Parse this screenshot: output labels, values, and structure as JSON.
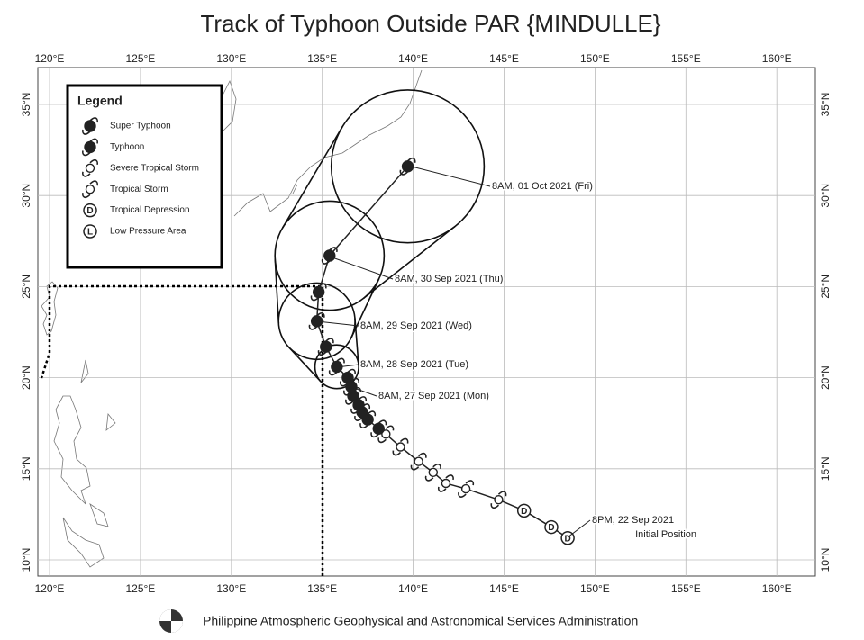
{
  "title": "Track of Typhoon Outside PAR {MINDULLE}",
  "lon_ticks": [
    {
      "value": 120,
      "label": "120°E"
    },
    {
      "value": 125,
      "label": "125°E"
    },
    {
      "value": 130,
      "label": "130°E"
    },
    {
      "value": 135,
      "label": "135°E"
    },
    {
      "value": 140,
      "label": "140°E"
    },
    {
      "value": 145,
      "label": "145°E"
    },
    {
      "value": 150,
      "label": "150°E"
    },
    {
      "value": 155,
      "label": "155°E"
    },
    {
      "value": 160,
      "label": "160°E"
    }
  ],
  "lat_ticks": [
    {
      "value": 10,
      "label": "10°N"
    },
    {
      "value": 15,
      "label": "15°N"
    },
    {
      "value": 20,
      "label": "20°N"
    },
    {
      "value": 25,
      "label": "25°N"
    },
    {
      "value": 30,
      "label": "30°N"
    },
    {
      "value": 35,
      "label": "35°N"
    }
  ],
  "legend": {
    "title": "Legend",
    "items": [
      {
        "label": "Super Typhoon"
      },
      {
        "label": "Typhoon"
      },
      {
        "label": "Severe Tropical Storm"
      },
      {
        "label": "Tropical Storm"
      },
      {
        "symbol": "D",
        "label": "Tropical Depression"
      },
      {
        "symbol": "L",
        "label": "Low Pressure Area"
      }
    ]
  },
  "track": [
    {
      "lon": 148.5,
      "lat": 11.2,
      "stage": 4
    },
    {
      "lon": 147.6,
      "lat": 11.8,
      "stage": 4
    },
    {
      "lon": 146.1,
      "lat": 12.7,
      "stage": 4
    },
    {
      "lon": 144.7,
      "lat": 13.3,
      "stage": 3
    },
    {
      "lon": 142.9,
      "lat": 13.9,
      "stage": 3
    },
    {
      "lon": 141.8,
      "lat": 14.2,
      "stage": 3
    },
    {
      "lon": 141.1,
      "lat": 14.8,
      "stage": 2
    },
    {
      "lon": 140.3,
      "lat": 15.4,
      "stage": 2
    },
    {
      "lon": 139.3,
      "lat": 16.2,
      "stage": 2
    },
    {
      "lon": 138.5,
      "lat": 16.9,
      "stage": 2
    },
    {
      "lon": 138.1,
      "lat": 17.2,
      "stage": 1
    },
    {
      "lon": 137.5,
      "lat": 17.7,
      "stage": 1
    },
    {
      "lon": 137.2,
      "lat": 18.1,
      "stage": 1
    },
    {
      "lon": 137.0,
      "lat": 18.5,
      "stage": 1
    },
    {
      "lon": 136.7,
      "lat": 19.0,
      "stage": 1
    },
    {
      "lon": 136.6,
      "lat": 19.5,
      "stage": 1
    },
    {
      "lon": 136.4,
      "lat": 20.0,
      "stage": 1
    },
    {
      "lon": 135.8,
      "lat": 20.6,
      "stage": 1
    },
    {
      "lon": 135.2,
      "lat": 21.7,
      "stage": 1
    },
    {
      "lon": 134.7,
      "lat": 23.1,
      "stage": 1
    },
    {
      "lon": 134.8,
      "lat": 24.7,
      "stage": 1
    },
    {
      "lon": 135.4,
      "lat": 26.7,
      "stage": 1
    },
    {
      "lon": 139.7,
      "lat": 31.6,
      "stage": 1
    }
  ],
  "forecast_circles": [
    {
      "lon": 135.8,
      "lat": 20.6,
      "radius": 1.2
    },
    {
      "lon": 134.7,
      "lat": 23.1,
      "radius": 2.1
    },
    {
      "lon": 135.4,
      "lat": 26.7,
      "radius": 3.0
    },
    {
      "lon": 139.7,
      "lat": 31.6,
      "radius": 4.2
    }
  ],
  "annotations": [
    "8AM, 01 Oct 2021 (Fri)",
    "8AM, 30 Sep 2021 (Thu)",
    "8AM, 29 Sep 2021 (Wed)",
    "8AM, 28 Sep 2021 (Tue)",
    "8AM, 27 Sep 2021 (Mon)",
    "8PM, 22 Sep 2021",
    "Initial Position"
  ],
  "footer": "Philippine Atmospheric Geophysical and Astronomical Services Administration"
}
